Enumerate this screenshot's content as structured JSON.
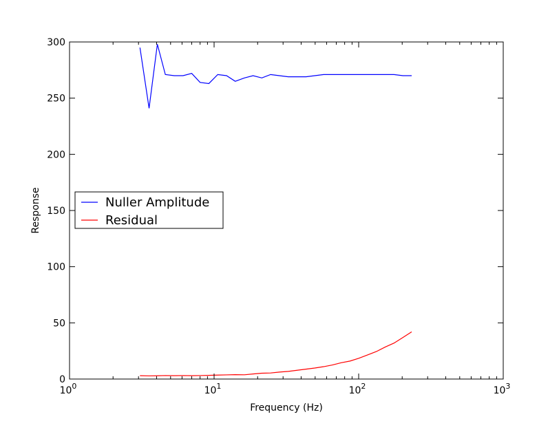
{
  "chart_data": {
    "type": "line",
    "xlabel": "Frequency (Hz)",
    "ylabel": "Response",
    "xscale": "log",
    "xlim": [
      1,
      1000
    ],
    "ylim": [
      0,
      300
    ],
    "grid": false,
    "legend_position": "center-left",
    "x_ticks": [
      {
        "value": 1,
        "base": "10",
        "exp": "0"
      },
      {
        "value": 10,
        "base": "10",
        "exp": "1"
      },
      {
        "value": 100,
        "base": "10",
        "exp": "2"
      },
      {
        "value": 1000,
        "base": "10",
        "exp": "3"
      }
    ],
    "y_ticks": [
      {
        "value": 0,
        "label": "0"
      },
      {
        "value": 50,
        "label": "50"
      },
      {
        "value": 100,
        "label": "100"
      },
      {
        "value": 150,
        "label": "150"
      },
      {
        "value": 200,
        "label": "200"
      },
      {
        "value": 250,
        "label": "250"
      },
      {
        "value": 300,
        "label": "300"
      }
    ],
    "series": [
      {
        "name": "Nuller Amplitude",
        "color": "#0000ff",
        "x": [
          3.07,
          3.55,
          4.05,
          4.6,
          5.3,
          6.1,
          7.0,
          8.0,
          9.2,
          10.6,
          12.2,
          14.0,
          16.2,
          18.6,
          21.4,
          24.6,
          28.3,
          32.6,
          37.5,
          43.2,
          49.7,
          57.2,
          65.8,
          75.7,
          87.1,
          100.2,
          115.3,
          132.7,
          152.7,
          175.7,
          202.2,
          232.6
        ],
        "y": [
          295,
          241,
          298,
          271,
          270,
          270,
          272,
          264,
          263,
          271,
          270,
          265,
          268,
          270,
          268,
          271,
          270,
          269,
          269,
          269,
          270,
          271,
          271,
          271,
          271,
          271,
          271,
          271,
          271,
          271,
          270,
          270
        ]
      },
      {
        "name": "Residual",
        "color": "#ff0000",
        "x": [
          3.07,
          3.55,
          4.05,
          4.6,
          5.3,
          6.1,
          7.0,
          8.0,
          9.2,
          10.6,
          12.2,
          14.0,
          16.2,
          18.6,
          21.4,
          24.6,
          28.3,
          32.6,
          37.5,
          43.2,
          49.7,
          57.2,
          65.8,
          75.7,
          87.1,
          100.2,
          115.3,
          132.7,
          152.7,
          175.7,
          202.2,
          232.6
        ],
        "y": [
          3,
          2.8,
          2.9,
          3.1,
          3.0,
          3.1,
          3.0,
          3.1,
          3.3,
          3.5,
          3.7,
          3.9,
          3.8,
          4.5,
          5.2,
          5.4,
          6.2,
          6.8,
          7.8,
          8.8,
          9.8,
          11,
          12.5,
          14.5,
          16,
          18.5,
          21.5,
          24.5,
          28.5,
          32,
          37,
          42
        ]
      }
    ]
  }
}
